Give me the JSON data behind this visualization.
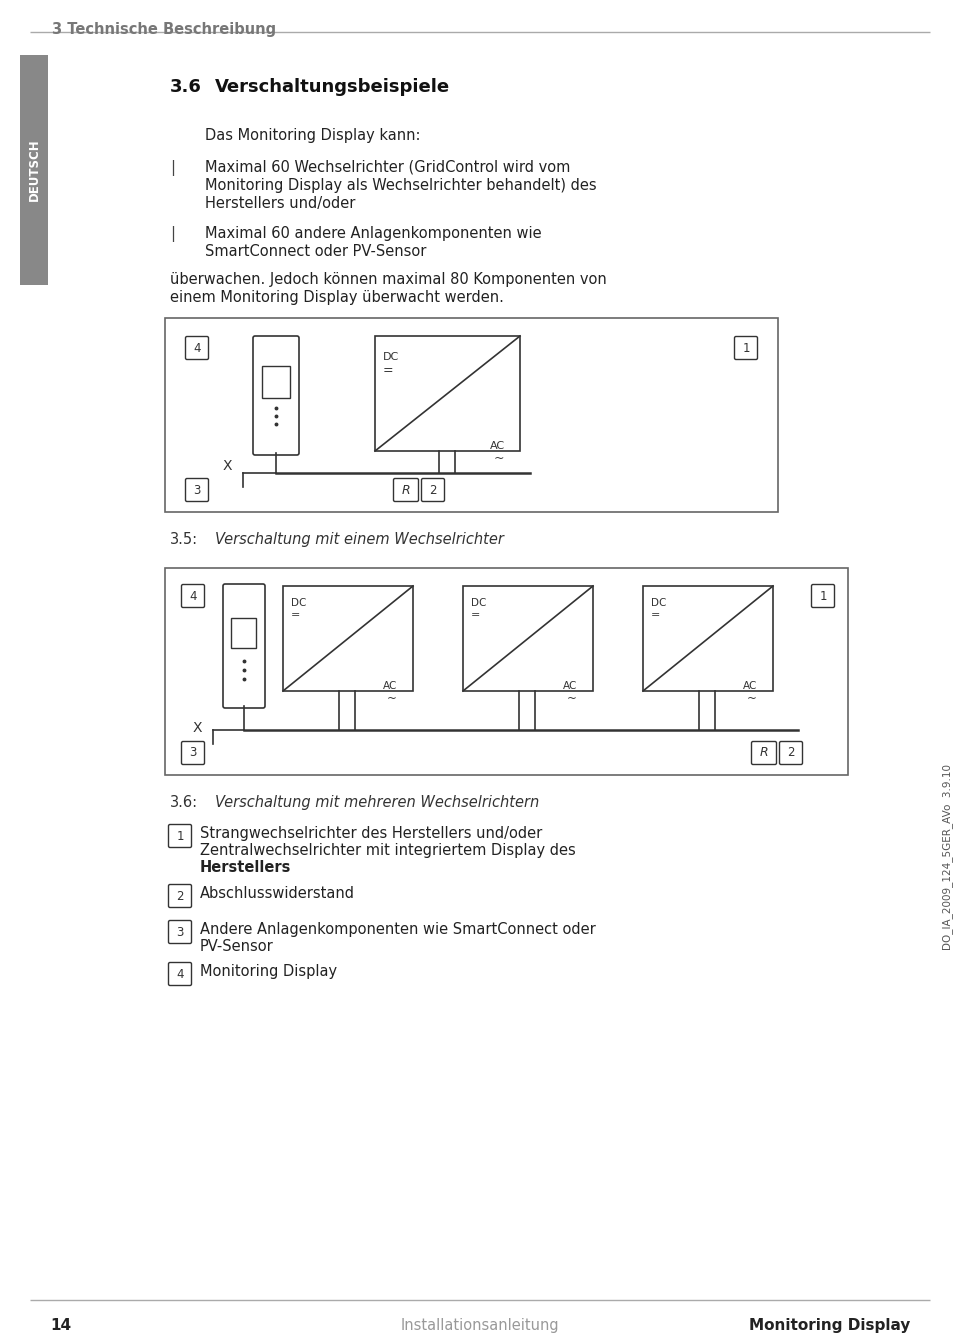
{
  "bg_color": "#ffffff",
  "header_text": "3 Technische Beschreibung",
  "sidebar_color": "#888888",
  "sidebar_text_rotated": "DEUTSCH",
  "section_number": "3.6",
  "section_title": "Verschaltungsbeispiele",
  "intro_line": "Das Monitoring Display kann:",
  "bullet1_line1": "Maximal 60 Wechselrichter (GridControl wird vom",
  "bullet1_line2": "Monitoring Display als Wechselrichter behandelt) des",
  "bullet1_line3": "Herstellers und/oder",
  "bullet2_line1": "Maximal 60 andere Anlagenkomponenten wie",
  "bullet2_line2": "SmartConnect oder PV-Sensor",
  "body_para_line1": "überwachen. Jedoch können maximal 80 Komponenten von",
  "body_para_line2": "einem Monitoring Display überwacht werden.",
  "fig1_caption_num": "3.5:",
  "fig1_caption_text": "Verschaltung mit einem Wechselrichter",
  "fig2_caption_num": "3.6:",
  "fig2_caption_text": "Verschaltung mit mehreren Wechselrichtern",
  "legend_1_line1": "Strangwechselrichter des Herstellers und/oder",
  "legend_1_line2": "Zentralwechselrichter mit integriertem Display des",
  "legend_1_line3": "Herstellers",
  "legend_2_text": "Abschlusswiderstand",
  "legend_3_line1": "Andere Anlagenkomponenten wie SmartConnect oder",
  "legend_3_line2": "PV-Sensor",
  "legend_4_text": "Monitoring Display",
  "footer_page": "14",
  "footer_center": "Installationsanleitung",
  "footer_right": "Monitoring Display",
  "version_text": "DO_IA_2009_124_5GER_AVo  3.9.10",
  "line_color": "#333333"
}
